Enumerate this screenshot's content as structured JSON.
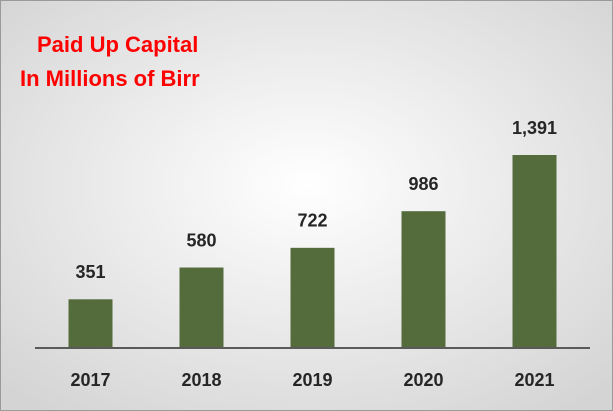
{
  "chart_data": {
    "type": "bar",
    "title": "Paid Up Capital",
    "subtitle": "In Millions of Birr",
    "categories": [
      "2017",
      "2018",
      "2019",
      "2020",
      "2021"
    ],
    "values": [
      351,
      580,
      722,
      986,
      1391
    ],
    "value_labels": [
      "351",
      "580",
      "722",
      "986",
      "1,391"
    ],
    "color": "#546b3c"
  }
}
